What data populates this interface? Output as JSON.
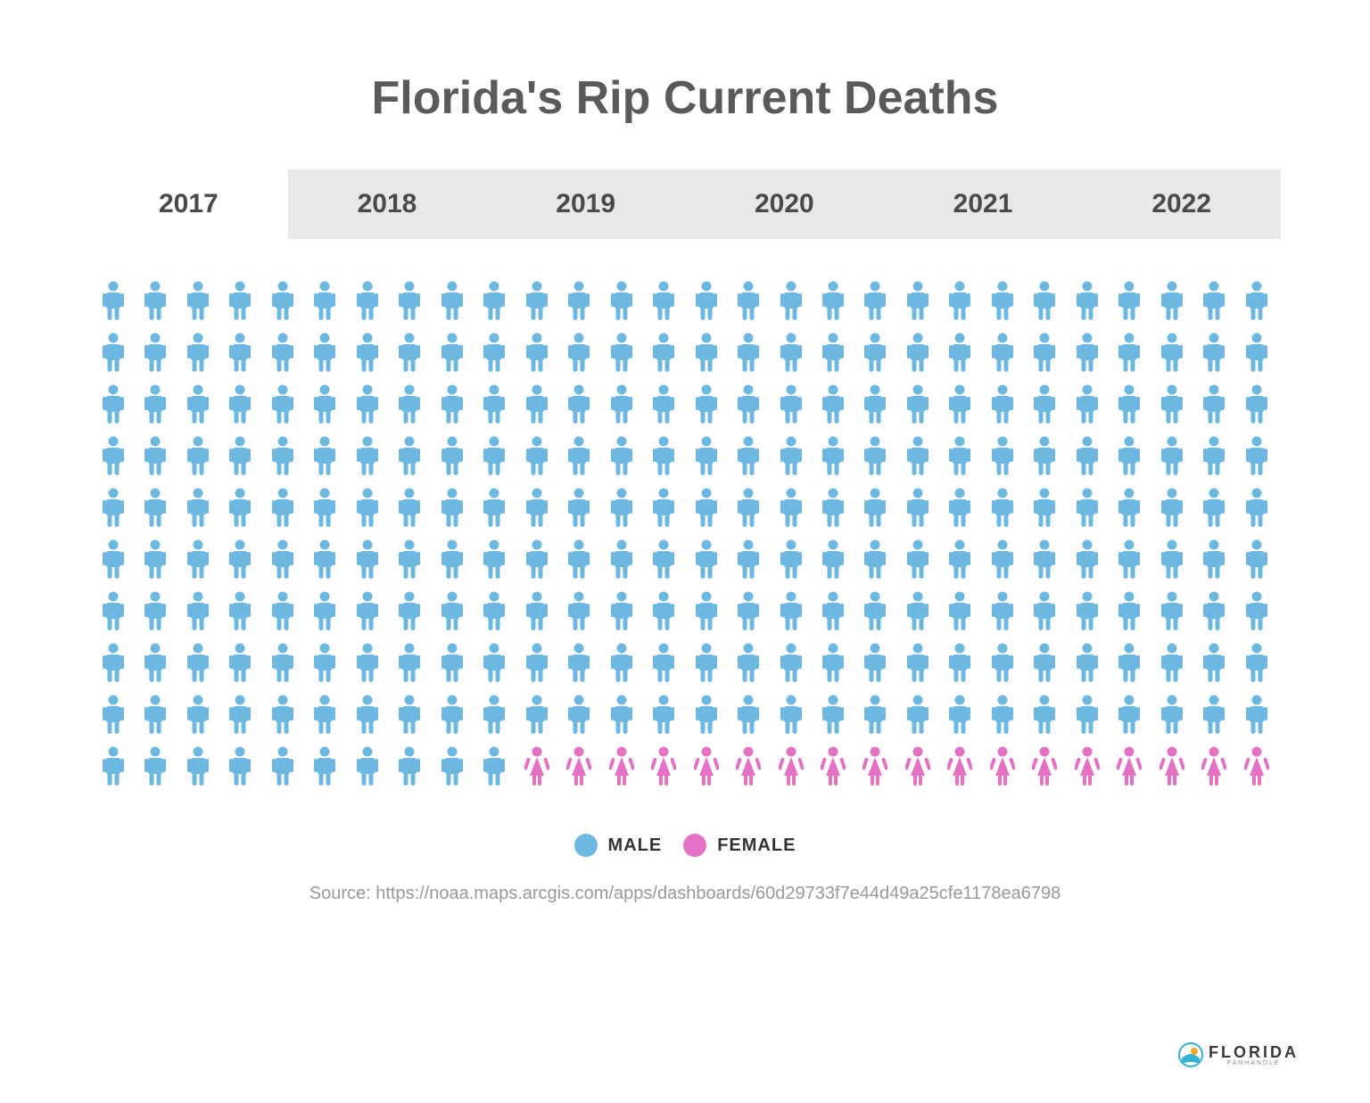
{
  "title": "Florida's Rip Current Deaths",
  "tabs": [
    {
      "label": "2017",
      "active": true
    },
    {
      "label": "2018",
      "active": false
    },
    {
      "label": "2019",
      "active": false
    },
    {
      "label": "2020",
      "active": false
    },
    {
      "label": "2021",
      "active": false
    },
    {
      "label": "2022",
      "active": false
    }
  ],
  "pictogram": {
    "total_icons": 280,
    "columns": 28,
    "rows": 10,
    "male_count": 262,
    "female_count": 18,
    "male_color": "#6cb8e0",
    "female_color": "#e471c4"
  },
  "legend": {
    "items": [
      {
        "label": "MALE",
        "color": "#6cb8e0"
      },
      {
        "label": "FEMALE",
        "color": "#e471c4"
      }
    ]
  },
  "source": "Source: https://noaa.maps.arcgis.com/apps/dashboards/60d29733f7e44d49a25cfe1178ea6798",
  "logo": {
    "text": "FLORIDA",
    "subtext": "PANHANDLE",
    "icon_color_1": "#34b2d6",
    "icon_color_2": "#f5a623"
  },
  "colors": {
    "title_color": "#5a5a5a",
    "tab_bg": "#e8e8e8",
    "tab_active_bg": "#ffffff",
    "tab_text": "#4a4a4a",
    "source_color": "#999999",
    "background": "#ffffff"
  },
  "typography": {
    "title_fontsize": 52,
    "tab_fontsize": 30,
    "legend_fontsize": 20,
    "source_fontsize": 20
  }
}
